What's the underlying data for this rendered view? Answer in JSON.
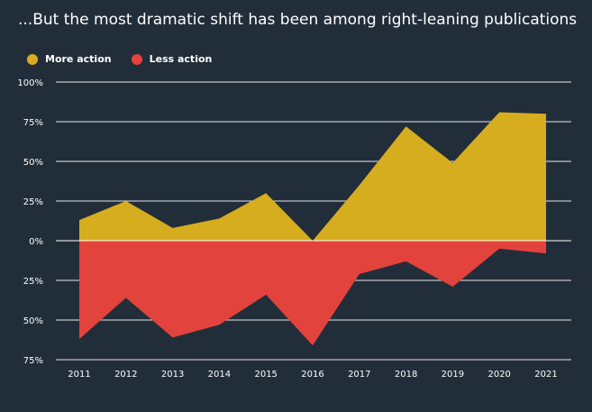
{
  "chart_data": {
    "type": "area",
    "title": "...But the most dramatic shift has been among right-leaning publications",
    "xlabel": "",
    "ylabel": "",
    "categories": [
      "2011",
      "2012",
      "2013",
      "2014",
      "2015",
      "2016",
      "2017",
      "2018",
      "2019",
      "2020",
      "2021"
    ],
    "series": [
      {
        "name": "More action",
        "color": "#d6ad1f",
        "values": [
          13,
          25,
          8,
          14,
          30,
          0,
          35,
          72,
          49,
          81,
          80
        ]
      },
      {
        "name": "Less action",
        "color": "#e2433c",
        "values": [
          -62,
          -36,
          -61,
          -53,
          -34,
          -66,
          -21,
          -13,
          -29,
          -5,
          -8
        ]
      }
    ],
    "ylim": [
      -75,
      100
    ],
    "yticks": [
      100,
      75,
      50,
      25,
      0,
      -25,
      -50,
      -75
    ],
    "ytick_labels": [
      "100%",
      "75%",
      "50%",
      "25%",
      "0%",
      "25%",
      "50%",
      "75%"
    ],
    "grid": true,
    "legend_position": "top-left"
  }
}
